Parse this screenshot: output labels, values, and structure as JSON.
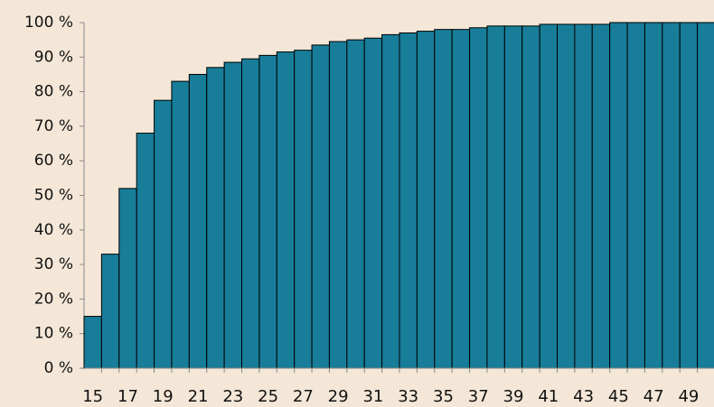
{
  "chart_data": {
    "type": "bar",
    "categories": [
      "15",
      null,
      "17",
      null,
      "19",
      null,
      "21",
      null,
      "23",
      null,
      "25",
      null,
      "27",
      null,
      "29",
      null,
      "31",
      null,
      "33",
      null,
      "35",
      null,
      "37",
      null,
      "39",
      null,
      "41",
      null,
      "43",
      null,
      "45",
      null,
      "47",
      null,
      "49",
      null
    ],
    "values": [
      15,
      33,
      52,
      68,
      77.5,
      83,
      85,
      87,
      88.5,
      89.5,
      90.5,
      91.5,
      92,
      93.5,
      94.5,
      95,
      95.5,
      96.5,
      97,
      97.5,
      98,
      98,
      98.5,
      99,
      99,
      99,
      99.5,
      99.5,
      99.5,
      99.5,
      100,
      100,
      100,
      100,
      100,
      100
    ],
    "color": "#177d99",
    "ylim": [
      0,
      100
    ],
    "yticks": [
      {
        "value": 0,
        "label": "0 %"
      },
      {
        "value": 10,
        "label": "10 %"
      },
      {
        "value": 20,
        "label": "20 %"
      },
      {
        "value": 30,
        "label": "30 %"
      },
      {
        "value": 40,
        "label": "40 %"
      },
      {
        "value": 50,
        "label": "50 %"
      },
      {
        "value": 60,
        "label": "60 %"
      },
      {
        "value": 70,
        "label": "70 %"
      },
      {
        "value": 80,
        "label": "80 %"
      },
      {
        "value": 90,
        "label": "90 %"
      },
      {
        "value": 100,
        "label": "100 %"
      }
    ]
  }
}
